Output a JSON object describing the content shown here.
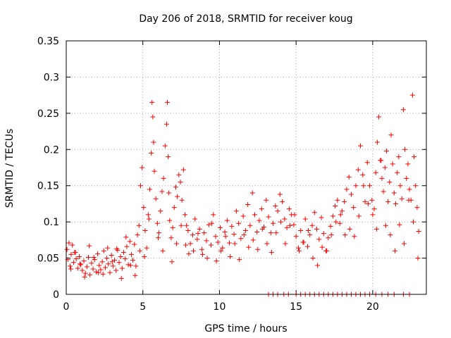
{
  "chart_data": {
    "type": "scatter",
    "title": "Day 206 of 2018, SRMTID for receiver koug",
    "xlabel": "GPS time / hours",
    "ylabel": "SRMTID / TECUs",
    "xlim": [
      0,
      23.5
    ],
    "ylim": [
      0,
      0.35
    ],
    "xticks": [
      0,
      5,
      10,
      15,
      20
    ],
    "yticks": [
      0,
      0.05,
      0.1,
      0.15,
      0.2,
      0.25,
      0.3,
      0.35
    ],
    "grid": true,
    "marker": "plus",
    "color": "#ff0000",
    "series": [
      {
        "name": "SRMTID",
        "x": [
          0.05,
          0.1,
          0.18,
          0.25,
          0.32,
          0.4,
          0.48,
          0.55,
          0.65,
          0.75,
          0.85,
          0.95,
          1.05,
          1.15,
          1.25,
          1.35,
          1.45,
          1.55,
          1.65,
          1.75,
          1.85,
          1.95,
          2.05,
          2.15,
          2.25,
          2.35,
          2.45,
          2.55,
          2.65,
          2.75,
          2.85,
          2.95,
          3.05,
          3.15,
          3.25,
          3.35,
          3.45,
          3.55,
          3.65,
          3.75,
          3.85,
          3.95,
          4.05,
          4.15,
          4.25,
          4.35,
          4.45,
          4.55,
          4.65,
          4.75,
          4.85,
          4.95,
          5.05,
          5.15,
          5.25,
          5.35,
          5.45,
          5.55,
          5.6,
          5.65,
          5.7,
          5.75,
          5.85,
          5.95,
          6.05,
          6.15,
          6.25,
          6.35,
          6.45,
          6.55,
          6.6,
          6.65,
          6.7,
          6.75,
          6.85,
          6.95,
          7.05,
          7.15,
          7.25,
          7.35,
          7.45,
          7.55,
          7.65,
          7.75,
          7.85,
          7.95,
          8.1,
          8.25,
          8.4,
          8.55,
          8.7,
          8.85,
          9.0,
          9.15,
          9.3,
          9.45,
          9.6,
          9.75,
          9.9,
          10.05,
          10.2,
          10.35,
          10.5,
          10.65,
          10.8,
          10.95,
          11.1,
          11.25,
          11.4,
          11.55,
          11.7,
          11.85,
          12.0,
          12.15,
          12.3,
          12.45,
          12.6,
          12.75,
          12.9,
          13.05,
          13.2,
          13.35,
          13.5,
          13.65,
          13.8,
          13.95,
          14.1,
          14.25,
          14.4,
          14.55,
          14.7,
          14.85,
          15.0,
          15.15,
          15.3,
          15.45,
          15.6,
          15.75,
          15.9,
          16.05,
          16.2,
          16.35,
          16.5,
          16.65,
          16.8,
          16.95,
          17.1,
          17.25,
          17.4,
          17.55,
          17.7,
          17.85,
          18.0,
          18.15,
          18.3,
          18.45,
          18.6,
          18.75,
          18.9,
          19.05,
          19.2,
          19.35,
          19.5,
          19.65,
          19.8,
          19.95,
          20.1,
          20.2,
          20.3,
          20.4,
          20.5,
          20.6,
          20.7,
          20.8,
          20.9,
          21.0,
          21.1,
          21.2,
          21.3,
          21.4,
          21.5,
          21.6,
          21.7,
          21.8,
          21.9,
          22.0,
          22.1,
          22.2,
          22.3,
          22.4,
          22.5,
          22.6,
          22.7,
          22.8,
          22.9,
          23.0,
          0.3,
          0.6,
          0.9,
          1.2,
          1.5,
          1.8,
          2.1,
          2.4,
          2.7,
          3.0,
          3.3,
          3.6,
          3.9,
          4.2,
          4.5,
          4.8,
          5.1,
          5.4,
          6.0,
          6.3,
          6.9,
          7.2,
          7.5,
          7.8,
          8.0,
          8.3,
          8.6,
          8.9,
          9.2,
          9.5,
          9.8,
          10.1,
          10.4,
          10.7,
          11.0,
          11.3,
          11.6,
          11.9,
          12.2,
          12.5,
          12.8,
          13.1,
          13.4,
          13.7,
          14.0,
          14.3,
          14.6,
          14.9,
          15.2,
          15.5,
          15.8,
          16.1,
          16.4,
          16.7,
          17.0,
          17.3,
          17.6,
          17.9,
          18.2,
          18.5,
          18.8,
          19.1,
          19.4,
          19.7,
          20.0,
          20.25,
          20.55,
          20.85,
          21.15,
          21.45,
          21.75,
          22.05,
          22.35,
          22.65,
          22.95,
          13.2,
          13.5,
          13.8,
          14.2,
          14.5,
          15.0,
          15.3,
          15.6,
          15.9,
          16.2,
          16.5,
          16.8,
          17.1,
          17.4,
          17.7,
          18.0,
          18.3,
          18.6,
          18.9,
          19.2,
          19.5,
          19.8,
          20.2,
          20.6,
          21.0,
          21.4,
          22.0,
          22.4
        ],
        "y": [
          0.062,
          0.048,
          0.071,
          0.039,
          0.055,
          0.068,
          0.044,
          0.058,
          0.049,
          0.036,
          0.052,
          0.041,
          0.033,
          0.046,
          0.029,
          0.038,
          0.051,
          0.027,
          0.043,
          0.035,
          0.048,
          0.031,
          0.056,
          0.04,
          0.034,
          0.045,
          0.06,
          0.037,
          0.05,
          0.042,
          0.03,
          0.054,
          0.039,
          0.047,
          0.033,
          0.061,
          0.044,
          0.052,
          0.036,
          0.058,
          0.049,
          0.066,
          0.041,
          0.073,
          0.055,
          0.047,
          0.069,
          0.039,
          0.082,
          0.095,
          0.15,
          0.175,
          0.12,
          0.088,
          0.064,
          0.11,
          0.145,
          0.195,
          0.265,
          0.245,
          0.21,
          0.17,
          0.132,
          0.098,
          0.085,
          0.115,
          0.142,
          0.16,
          0.205,
          0.235,
          0.265,
          0.19,
          0.14,
          0.102,
          0.078,
          0.092,
          0.12,
          0.148,
          0.135,
          0.165,
          0.155,
          0.13,
          0.172,
          0.11,
          0.095,
          0.088,
          0.07,
          0.082,
          0.104,
          0.076,
          0.09,
          0.062,
          0.085,
          0.074,
          0.096,
          0.068,
          0.11,
          0.08,
          0.072,
          0.092,
          0.064,
          0.086,
          0.102,
          0.071,
          0.094,
          0.083,
          0.115,
          0.098,
          0.077,
          0.108,
          0.088,
          0.124,
          0.095,
          0.14,
          0.11,
          0.086,
          0.102,
          0.118,
          0.093,
          0.13,
          0.107,
          0.085,
          0.098,
          0.122,
          0.115,
          0.138,
          0.128,
          0.104,
          0.092,
          0.118,
          0.11,
          0.096,
          0.08,
          0.064,
          0.088,
          0.072,
          0.104,
          0.066,
          0.082,
          0.095,
          0.113,
          0.09,
          0.076,
          0.106,
          0.084,
          0.06,
          0.078,
          0.094,
          0.108,
          0.122,
          0.13,
          0.098,
          0.115,
          0.128,
          0.145,
          0.162,
          0.138,
          0.12,
          0.15,
          0.172,
          0.205,
          0.165,
          0.128,
          0.182,
          0.15,
          0.13,
          0.118,
          0.168,
          0.21,
          0.245,
          0.185,
          0.16,
          0.142,
          0.175,
          0.198,
          0.128,
          0.155,
          0.22,
          0.18,
          0.14,
          0.125,
          0.168,
          0.19,
          0.15,
          0.132,
          0.255,
          0.2,
          0.16,
          0.18,
          0.145,
          0.13,
          0.275,
          0.19,
          0.15,
          0.12,
          0.087,
          0.035,
          0.058,
          0.042,
          0.024,
          0.067,
          0.051,
          0.03,
          0.028,
          0.064,
          0.045,
          0.063,
          0.022,
          0.079,
          0.04,
          0.026,
          0.06,
          0.052,
          0.104,
          0.078,
          0.06,
          0.045,
          0.07,
          0.095,
          0.068,
          0.056,
          0.06,
          0.084,
          0.055,
          0.05,
          0.098,
          0.046,
          0.06,
          0.08,
          0.052,
          0.07,
          0.048,
          0.082,
          0.065,
          0.075,
          0.062,
          0.09,
          0.07,
          0.058,
          0.085,
          0.1,
          0.07,
          0.095,
          0.11,
          0.06,
          0.072,
          0.088,
          0.05,
          0.04,
          0.065,
          0.06,
          0.082,
          0.1,
          0.11,
          0.082,
          0.09,
          0.08,
          0.108,
          0.15,
          0.125,
          0.11,
          0.09,
          0.185,
          0.095,
          0.082,
          0.06,
          0.096,
          0.07,
          0.13,
          0.1,
          0.05,
          0.0,
          0.0,
          0.0,
          0.0,
          0.0,
          0.0,
          0.0,
          0.0,
          0.0,
          0.0,
          0.0,
          0.0,
          0.0,
          0.0,
          0.0,
          0.0,
          0.0,
          0.0,
          0.0,
          0.0,
          0.0,
          0.0,
          0.0,
          0.0,
          0.0,
          0.0,
          0.0,
          0.0
        ]
      }
    ]
  }
}
